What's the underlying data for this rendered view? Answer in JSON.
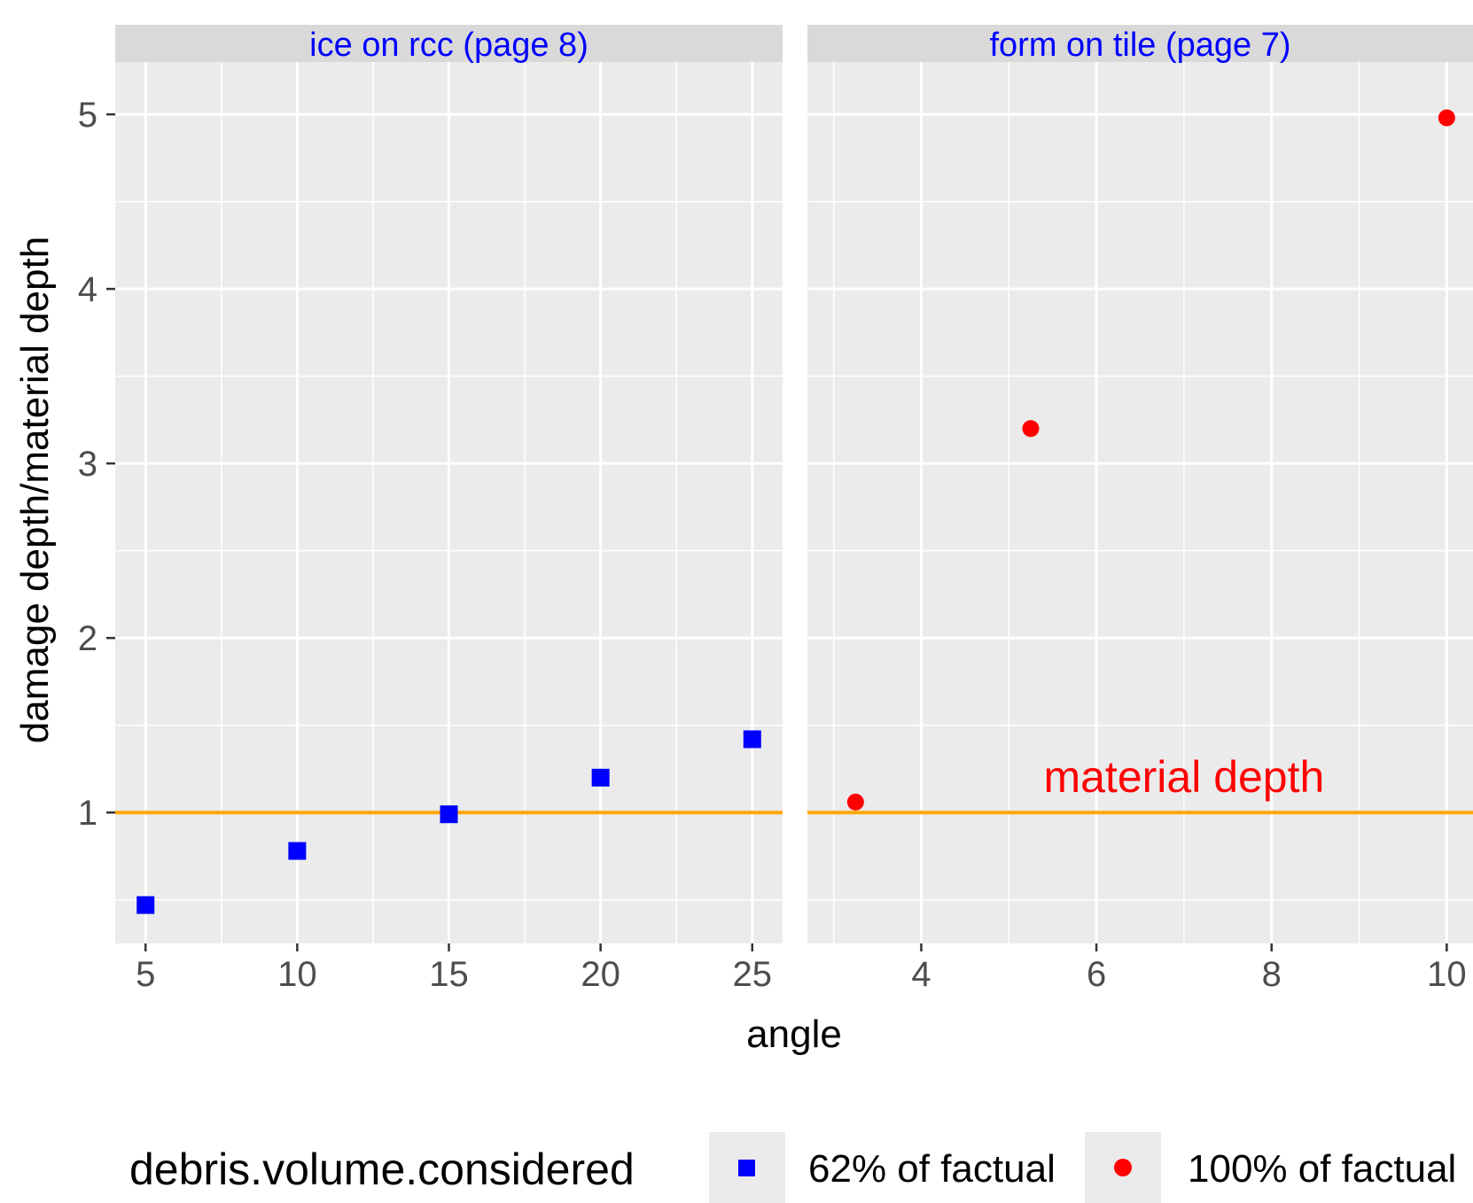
{
  "chart_data": {
    "type": "scatter",
    "xlabel": "angle",
    "ylabel": "damage depth/material depth",
    "ylim": [
      0.25,
      5.3
    ],
    "y_ticks": [
      1,
      2,
      3,
      4,
      5
    ],
    "y_tick_labels": [
      "1",
      "2",
      "3",
      "4",
      "5"
    ],
    "grid": true,
    "facet_label_color": "#0000ff",
    "reference_line": {
      "y": 1,
      "color": "#ffa500"
    },
    "annotation": {
      "text": "material depth",
      "panel": 1,
      "x": 7.0,
      "y": 1.2,
      "color": "#ff0000"
    },
    "legend": {
      "title": "debris.volume.considered",
      "placement": "bottom",
      "entries": [
        {
          "label": "62% of factual",
          "color": "#0000ff",
          "shape": "square"
        },
        {
          "label": "100% of factual",
          "color": "#ff0000",
          "shape": "circle"
        }
      ]
    },
    "panels": [
      {
        "title": "ice on rcc (page 8)",
        "xlim": [
          4,
          26
        ],
        "x_ticks": [
          5,
          10,
          15,
          20,
          25
        ],
        "x_tick_labels": [
          "5",
          "10",
          "15",
          "20",
          "25"
        ],
        "series": {
          "legend_index": 0,
          "color": "#0000ff",
          "shape": "square",
          "x": [
            5,
            10,
            15,
            20,
            25
          ],
          "y": [
            0.47,
            0.78,
            0.99,
            1.2,
            1.42
          ]
        }
      },
      {
        "title": "form on tile (page 7)",
        "xlim": [
          2.7,
          10.3
        ],
        "x_ticks": [
          4,
          6,
          8,
          10
        ],
        "x_tick_labels": [
          "4",
          "6",
          "8",
          "10"
        ],
        "series": {
          "legend_index": 1,
          "color": "#ff0000",
          "shape": "circle",
          "x": [
            3.25,
            5.25,
            10.0
          ],
          "y": [
            1.06,
            3.2,
            4.98
          ]
        }
      }
    ]
  }
}
